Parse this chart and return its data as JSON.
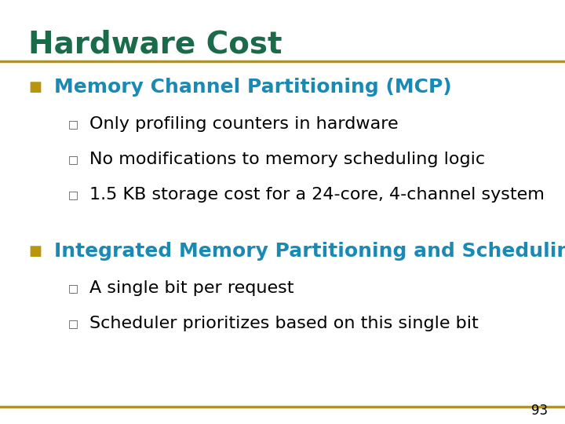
{
  "title": "Hardware Cost",
  "title_color": "#1a6b4a",
  "title_fontsize": 28,
  "background_color": "#ffffff",
  "line_color": "#b8960c",
  "bullet_color": "#b8960c",
  "sub_bullet_color": "#555555",
  "section1_header": "Memory Channel Partitioning (MCP)",
  "section1_header_color": "#1a8ab5",
  "section1_items": [
    "Only profiling counters in hardware",
    "No modifications to memory scheduling logic",
    "1.5 KB storage cost for a 24-core, 4-channel system"
  ],
  "section2_header": "Integrated Memory Partitioning and Scheduling (IMPS)",
  "section2_header_color": "#1a8ab5",
  "section2_items": [
    "A single bit per request",
    "Scheduler prioritizes based on this single bit"
  ],
  "page_number": "93",
  "text_color": "#000000",
  "body_fontsize": 16,
  "header_fontsize": 18
}
